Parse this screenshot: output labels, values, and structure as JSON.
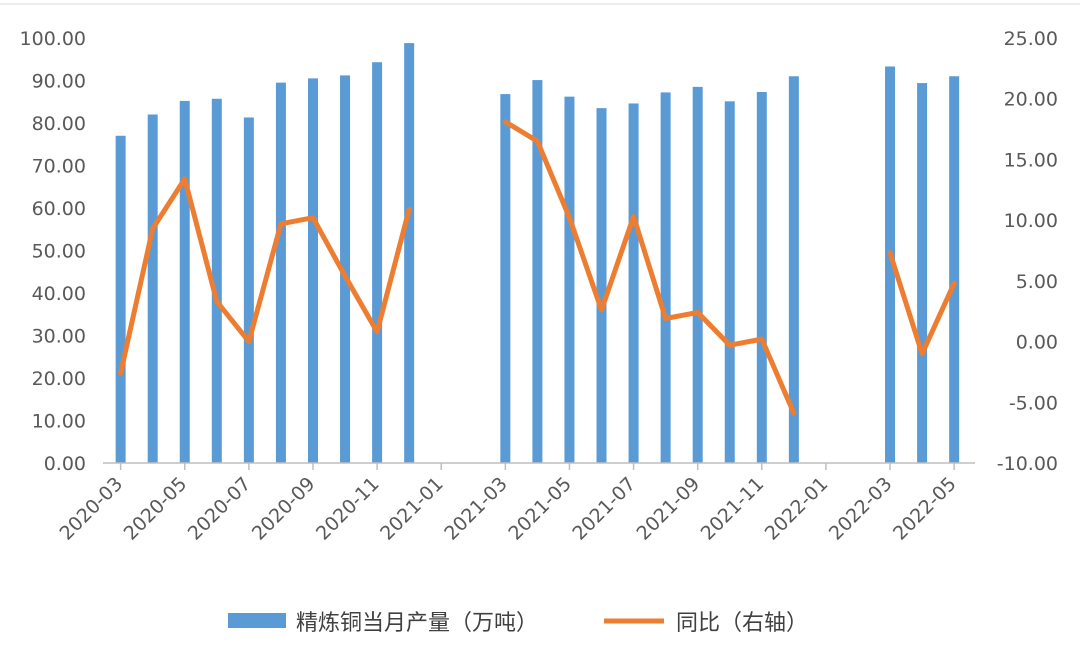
{
  "chart_data": {
    "type": "bar+line",
    "title": "",
    "x_tick_labels": [
      "2020-03",
      "2020-05",
      "2020-07",
      "2020-09",
      "2020-11",
      "2021-01",
      "2021-03",
      "2021-05",
      "2021-07",
      "2021-09",
      "2021-11",
      "2022-01",
      "2022-03",
      "2022-05"
    ],
    "categories": [
      "2020-03",
      "2020-04",
      "2020-05",
      "2020-06",
      "2020-07",
      "2020-08",
      "2020-09",
      "2020-10",
      "2020-11",
      "2020-12",
      "2021-01",
      "2021-02",
      "2021-03",
      "2021-04",
      "2021-05",
      "2021-06",
      "2021-07",
      "2021-08",
      "2021-09",
      "2021-10",
      "2021-11",
      "2021-12",
      "2022-01",
      "2022-02",
      "2022-03",
      "2022-04",
      "2022-05"
    ],
    "y_left": {
      "min": 0,
      "max": 100,
      "step": 10,
      "tick_labels": [
        "0.00",
        "10.00",
        "20.00",
        "30.00",
        "40.00",
        "50.00",
        "60.00",
        "70.00",
        "80.00",
        "90.00",
        "100.00"
      ]
    },
    "y_right": {
      "min": -10,
      "max": 25,
      "step": 5,
      "tick_labels": [
        "-10.00",
        "-5.00",
        "0.00",
        "5.00",
        "10.00",
        "15.00",
        "20.00",
        "25.00"
      ]
    },
    "series": [
      {
        "name": "精炼铜当月产量（万吨）",
        "type": "bar",
        "axis": "left",
        "color": "#5b9bd5",
        "values": [
          77,
          82,
          85.2,
          85.7,
          81.3,
          89.5,
          90.5,
          91.2,
          94.3,
          98.8,
          null,
          null,
          86.8,
          90.1,
          86.2,
          83.5,
          84.6,
          87.2,
          88.5,
          85.1,
          87.3,
          91,
          null,
          null,
          93.3,
          89.4,
          91
        ]
      },
      {
        "name": "同比（右轴）",
        "type": "line",
        "axis": "right",
        "color": "#ed7d31",
        "values": [
          -2.6,
          9.3,
          13.4,
          3.3,
          0,
          9.7,
          10.2,
          5.4,
          0.8,
          10.9,
          null,
          null,
          18.1,
          16.5,
          10.2,
          2.6,
          10.3,
          1.9,
          2.4,
          -0.3,
          0.2,
          -5.9,
          null,
          null,
          7.3,
          -1,
          4.8
        ]
      }
    ],
    "grid": false,
    "legend_position": "bottom"
  }
}
